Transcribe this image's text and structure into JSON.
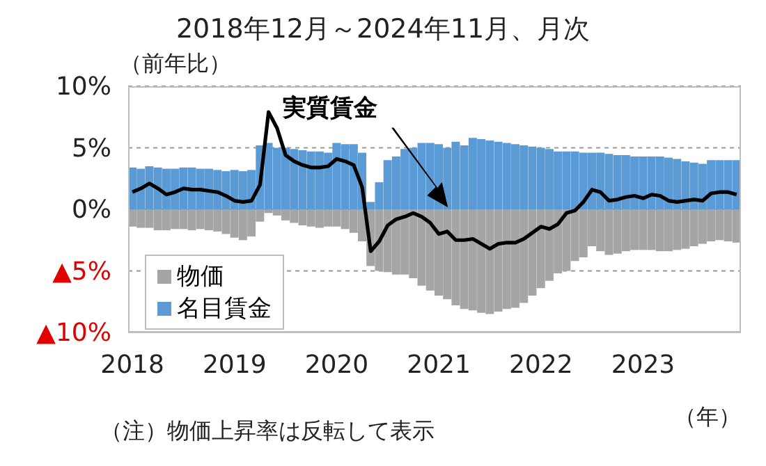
{
  "chart_data": {
    "type": "bar",
    "title": "2018年12月～2024年11月、月次",
    "ylabel": "（前年比）",
    "xlabel": "（年）",
    "annotations": [
      "（注）物価上昇率は反転して表示"
    ],
    "categories": [
      "2018",
      null,
      null,
      null,
      null,
      null,
      null,
      null,
      null,
      null,
      null,
      null,
      "2019",
      null,
      null,
      null,
      null,
      null,
      null,
      null,
      null,
      null,
      null,
      null,
      "2020",
      null,
      null,
      null,
      null,
      null,
      null,
      null,
      null,
      null,
      null,
      null,
      "2021",
      null,
      null,
      null,
      null,
      null,
      null,
      null,
      null,
      null,
      null,
      null,
      "2022",
      null,
      null,
      null,
      null,
      null,
      null,
      null,
      null,
      null,
      null,
      null,
      "2023",
      null,
      null,
      null,
      null,
      null,
      null,
      null,
      null,
      null,
      null,
      null
    ],
    "stacked": true,
    "series": [
      {
        "name": "物価",
        "color": "#a5a5a5",
        "values": [
          -1.4,
          -1.5,
          -1.5,
          -1.7,
          -1.7,
          -1.6,
          -1.6,
          -1.7,
          -1.6,
          -1.7,
          -1.8,
          -2.0,
          -2.3,
          -2.5,
          -2.2,
          -1.0,
          -0.3,
          -0.5,
          -0.9,
          -1.1,
          -1.3,
          -1.4,
          -1.5,
          -1.4,
          -1.4,
          -1.6,
          -1.9,
          -2.6,
          -4.6,
          -5.0,
          -5.1,
          -5.3,
          -5.3,
          -5.6,
          -6.2,
          -6.6,
          -7.0,
          -7.3,
          -7.8,
          -8.1,
          -8.2,
          -8.4,
          -8.5,
          -8.3,
          -8.1,
          -8.0,
          -7.6,
          -7.0,
          -6.4,
          -5.8,
          -5.2,
          -5.0,
          -4.2,
          -3.9,
          -3.0,
          -3.4,
          -3.7,
          -3.6,
          -3.4,
          -3.3,
          -3.3,
          -3.3,
          -3.4,
          -3.4,
          -3.3,
          -3.2,
          -3.0,
          -2.8,
          -2.6,
          -2.5,
          -2.6,
          -2.7
        ]
      },
      {
        "name": "名目賃金",
        "color": "#5b9bd5",
        "values": [
          3.4,
          3.3,
          3.5,
          3.4,
          3.3,
          3.3,
          3.4,
          3.4,
          3.3,
          3.3,
          3.2,
          3.1,
          3.2,
          3.1,
          3.2,
          5.2,
          5.4,
          5.0,
          5.0,
          4.9,
          4.8,
          4.7,
          4.7,
          4.6,
          5.4,
          5.3,
          5.3,
          4.6,
          0.6,
          2.2,
          4.0,
          4.3,
          4.9,
          5.0,
          5.4,
          5.4,
          5.3,
          5.0,
          5.5,
          5.2,
          5.8,
          5.7,
          5.6,
          5.5,
          5.4,
          5.3,
          5.2,
          5.1,
          5.0,
          4.9,
          4.7,
          4.7,
          4.7,
          4.6,
          4.6,
          4.6,
          4.5,
          4.4,
          4.4,
          4.3,
          4.3,
          4.3,
          4.3,
          4.2,
          4.1,
          3.9,
          3.8,
          3.7,
          4.0,
          4.0,
          4.0,
          4.0
        ]
      },
      {
        "name": "実質賃金",
        "type": "line",
        "color": "#000000",
        "values": [
          1.4,
          1.7,
          2.1,
          1.7,
          1.2,
          1.4,
          1.7,
          1.6,
          1.6,
          1.5,
          1.4,
          1.1,
          0.7,
          0.6,
          0.7,
          2.0,
          7.9,
          6.6,
          4.4,
          3.9,
          3.6,
          3.4,
          3.4,
          3.5,
          4.1,
          3.9,
          3.6,
          1.8,
          -3.4,
          -2.6,
          -1.3,
          -0.8,
          -0.6,
          -0.3,
          -0.6,
          -1.1,
          -2.0,
          -1.8,
          -2.5,
          -2.5,
          -2.4,
          -2.8,
          -3.2,
          -2.8,
          -2.7,
          -2.7,
          -2.4,
          -1.9,
          -1.4,
          -1.6,
          -1.2,
          -0.3,
          -0.1,
          0.6,
          1.6,
          1.4,
          0.7,
          0.8,
          1.0,
          1.1,
          0.9,
          1.2,
          1.1,
          0.7,
          0.6,
          0.7,
          0.8,
          0.7,
          1.3,
          1.4,
          1.4,
          1.2
        ]
      }
    ],
    "ylim": [
      -10,
      10
    ],
    "yticks": [
      {
        "value": -10,
        "label": "▲10%"
      },
      {
        "value": -5,
        "label": "▲5%"
      },
      {
        "value": 0,
        "label": "0%"
      },
      {
        "value": 5,
        "label": "5%"
      },
      {
        "value": 10,
        "label": "10%"
      }
    ],
    "grid": "y",
    "legend": "bottom left",
    "marker": "none",
    "line_style": "solid"
  }
}
